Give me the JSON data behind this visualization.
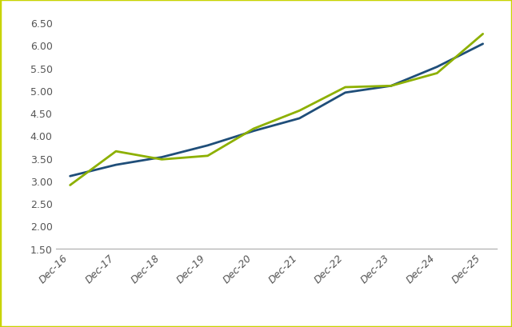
{
  "x_labels": [
    "Dec-16",
    "Dec-17",
    "Dec-18",
    "Dec-19",
    "Dec-20",
    "Dec-21",
    "Dec-22",
    "Dec-23",
    "Dec-24",
    "Dec-25"
  ],
  "eps_trend": [
    3.1,
    3.35,
    3.52,
    3.78,
    4.1,
    4.38,
    4.95,
    5.1,
    5.52,
    6.03
  ],
  "chesapeake_eps": [
    2.9,
    3.65,
    3.47,
    3.55,
    4.15,
    4.55,
    5.07,
    5.1,
    5.38,
    6.25
  ],
  "trend_color": "#1f4e79",
  "chesapeake_color": "#8db000",
  "ylim_min": 1.5,
  "ylim_max": 6.8,
  "yticks": [
    1.5,
    2.0,
    2.5,
    3.0,
    3.5,
    4.0,
    4.5,
    5.0,
    5.5,
    6.0,
    6.5
  ],
  "background_color": "#ffffff",
  "border_color": "#c8d400",
  "line_width": 2.0,
  "tick_fontsize": 9,
  "legend_fontsize": 9
}
